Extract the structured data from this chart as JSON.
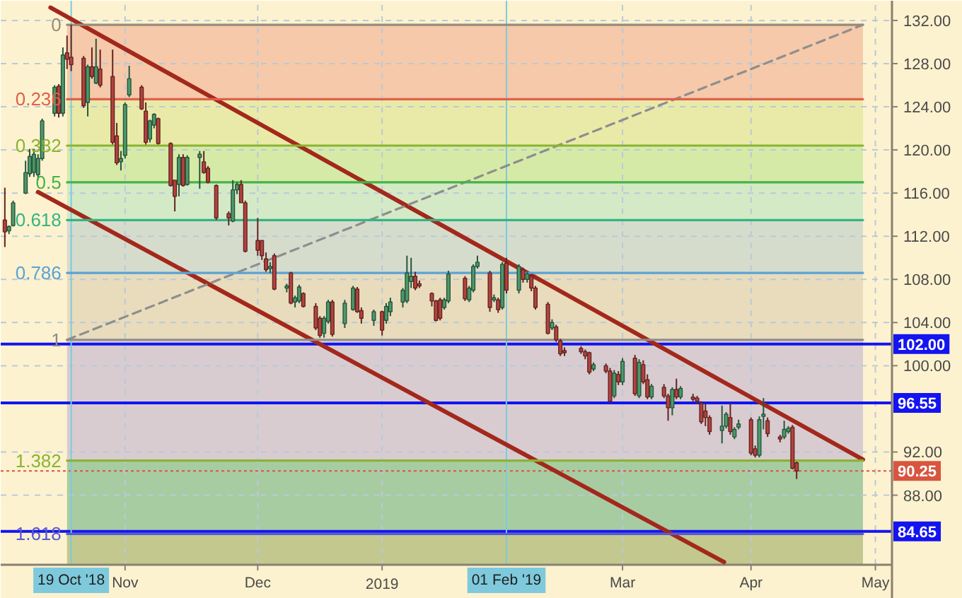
{
  "chart_data": {
    "type": "candlestick",
    "x": [
      "2018-10-03",
      "2018-10-04",
      "2018-10-05",
      "2018-10-08",
      "2018-10-09",
      "2018-10-10",
      "2018-10-11",
      "2018-10-12",
      "2018-10-15",
      "2018-10-16",
      "2018-10-17",
      "2018-10-18",
      "2018-10-19",
      "2018-10-22",
      "2018-10-23",
      "2018-10-24",
      "2018-10-25",
      "2018-10-26",
      "2018-10-29",
      "2018-10-30",
      "2018-10-31",
      "2018-11-01",
      "2018-11-02",
      "2018-11-05",
      "2018-11-06",
      "2018-11-07",
      "2018-11-08",
      "2018-11-09",
      "2018-11-12",
      "2018-11-13",
      "2018-11-14",
      "2018-11-15",
      "2018-11-16",
      "2018-11-19",
      "2018-11-20",
      "2018-11-21",
      "2018-11-23",
      "2018-11-26",
      "2018-11-27",
      "2018-11-28",
      "2018-11-29",
      "2018-11-30",
      "2018-12-03",
      "2018-12-04",
      "2018-12-05",
      "2018-12-06",
      "2018-12-07",
      "2018-12-10",
      "2018-12-11",
      "2018-12-12",
      "2018-12-13",
      "2018-12-14",
      "2018-12-17",
      "2018-12-18",
      "2018-12-19",
      "2018-12-20",
      "2018-12-21",
      "2018-12-24",
      "2018-12-26",
      "2018-12-27",
      "2018-12-28",
      "2018-12-31",
      "2019-01-02",
      "2019-01-03",
      "2019-01-04",
      "2019-01-07",
      "2019-01-08",
      "2019-01-09",
      "2019-01-10",
      "2019-01-11",
      "2019-01-14",
      "2019-01-15",
      "2019-01-16",
      "2019-01-17",
      "2019-01-18",
      "2019-01-22",
      "2019-01-23",
      "2019-01-24",
      "2019-01-25",
      "2019-01-28",
      "2019-01-29",
      "2019-01-30",
      "2019-01-31",
      "2019-02-01",
      "2019-02-04",
      "2019-02-05",
      "2019-02-06",
      "2019-02-07",
      "2019-02-08",
      "2019-02-11",
      "2019-02-12",
      "2019-02-13",
      "2019-02-14",
      "2019-02-15",
      "2019-02-19",
      "2019-02-20",
      "2019-02-21",
      "2019-02-22",
      "2019-02-25",
      "2019-02-26",
      "2019-02-27",
      "2019-02-28",
      "2019-03-01",
      "2019-03-04",
      "2019-03-05",
      "2019-03-06",
      "2019-03-07",
      "2019-03-08",
      "2019-03-11",
      "2019-03-12",
      "2019-03-13",
      "2019-03-14",
      "2019-03-15",
      "2019-03-18",
      "2019-03-19",
      "2019-03-20",
      "2019-03-21",
      "2019-03-22",
      "2019-03-25",
      "2019-03-26",
      "2019-03-27",
      "2019-03-28",
      "2019-03-29",
      "2019-04-01",
      "2019-04-02",
      "2019-04-03",
      "2019-04-04",
      "2019-04-05",
      "2019-04-08",
      "2019-04-09",
      "2019-04-10",
      "2019-04-11",
      "2019-04-12"
    ],
    "ohlc": [
      [
        113.5,
        116.5,
        111.0,
        112.4
      ],
      [
        112.5,
        113.0,
        112.2,
        112.9
      ],
      [
        113.0,
        115.3,
        112.9,
        115.1
      ],
      [
        116.0,
        119.0,
        115.9,
        117.9
      ],
      [
        117.8,
        120.1,
        117.5,
        119.4
      ],
      [
        117.9,
        120.1,
        117.5,
        119.6
      ],
      [
        117.7,
        119.6,
        117.2,
        119.2
      ],
      [
        119.2,
        122.9,
        119.0,
        122.7
      ],
      [
        123.4,
        126.0,
        123.1,
        125.8
      ],
      [
        125.9,
        126.1,
        123.0,
        123.4
      ],
      [
        123.4,
        129.5,
        123.1,
        128.8
      ],
      [
        129.0,
        130.6,
        127.5,
        128.4
      ],
      [
        128.6,
        131.6,
        127.3,
        127.9
      ],
      [
        128.5,
        128.7,
        123.9,
        124.1
      ],
      [
        124.4,
        127.9,
        123.1,
        127.7
      ],
      [
        127.7,
        129.5,
        126.6,
        126.8
      ],
      [
        126.2,
        130.3,
        126.1,
        127.7
      ],
      [
        127.5,
        129.3,
        125.8,
        126.0
      ],
      [
        126.8,
        129.3,
        120.5,
        120.7
      ],
      [
        121.3,
        122.5,
        118.6,
        118.8
      ],
      [
        118.9,
        119.9,
        118.1,
        119.2
      ],
      [
        119.5,
        124.4,
        119.2,
        124.2
      ],
      [
        125.1,
        127.8,
        124.9,
        126.6
      ],
      [
        125.8,
        126.0,
        123.7,
        123.8
      ],
      [
        123.6,
        124.4,
        120.5,
        120.7
      ],
      [
        121.0,
        122.8,
        120.7,
        122.7
      ],
      [
        122.3,
        123.4,
        122.0,
        123.3
      ],
      [
        122.9,
        123.0,
        120.5,
        120.6
      ],
      [
        120.6,
        120.7,
        116.6,
        116.7
      ],
      [
        117.2,
        117.2,
        114.3,
        115.7
      ],
      [
        116.8,
        119.6,
        115.7,
        119.3
      ],
      [
        119.3,
        119.6,
        116.6,
        116.7
      ],
      [
        116.8,
        119.5,
        116.7,
        119.3
      ],
      [
        119.3,
        119.9,
        116.4,
        119.6
      ],
      [
        118.9,
        119.9,
        117.8,
        117.9
      ],
      [
        118.3,
        118.5,
        116.9,
        117.0
      ],
      [
        116.7,
        116.8,
        113.5,
        113.7
      ],
      [
        114.1,
        114.3,
        113.0,
        113.7
      ],
      [
        113.4,
        117.2,
        113.3,
        116.3
      ],
      [
        116.3,
        117.0,
        115.9,
        116.8
      ],
      [
        116.8,
        117.2,
        115.1,
        115.1
      ],
      [
        115.1,
        115.3,
        110.5,
        110.6
      ],
      [
        111.6,
        113.7,
        110.2,
        110.7
      ],
      [
        111.6,
        111.6,
        109.8,
        110.2
      ],
      [
        109.9,
        110.5,
        108.7,
        108.9
      ],
      [
        109.0,
        109.6,
        108.6,
        109.2
      ],
      [
        110.2,
        110.4,
        107.0,
        107.1
      ],
      [
        107.2,
        107.6,
        106.8,
        107.4
      ],
      [
        108.6,
        108.7,
        105.7,
        105.8
      ],
      [
        105.9,
        106.5,
        105.4,
        106.3
      ],
      [
        106.0,
        107.5,
        105.8,
        107.3
      ],
      [
        106.7,
        106.8,
        105.4,
        105.5
      ],
      [
        105.5,
        105.8,
        103.3,
        103.5
      ],
      [
        104.4,
        104.6,
        102.6,
        102.8
      ],
      [
        103.0,
        104.6,
        102.6,
        104.4
      ],
      [
        104.1,
        106.1,
        103.9,
        105.9
      ],
      [
        105.9,
        106.1,
        102.7,
        102.9
      ],
      [
        103.9,
        106.1,
        103.5,
        105.8
      ],
      [
        105.2,
        107.4,
        105.1,
        107.2
      ],
      [
        107.1,
        107.3,
        104.9,
        105.0
      ],
      [
        105.1,
        105.4,
        103.9,
        104.4
      ],
      [
        104.2,
        105.2,
        103.7,
        105.0
      ],
      [
        105.0,
        105.1,
        102.8,
        103.3
      ],
      [
        104.2,
        105.8,
        103.9,
        105.5
      ],
      [
        105.0,
        106.3,
        104.6,
        105.9
      ],
      [
        105.9,
        107.2,
        105.4,
        107.0
      ],
      [
        106.0,
        110.2,
        105.8,
        108.6
      ],
      [
        107.8,
        110.0,
        107.2,
        108.3
      ],
      [
        108.3,
        108.7,
        107.0,
        107.2
      ],
      [
        107.6,
        107.9,
        107.2,
        107.4
      ],
      [
        106.7,
        106.8,
        105.5,
        106.0
      ],
      [
        106.0,
        106.1,
        104.1,
        104.2
      ],
      [
        106.1,
        106.3,
        104.2,
        104.4
      ],
      [
        105.4,
        106.3,
        105.2,
        106.1
      ],
      [
        106.0,
        108.8,
        105.8,
        108.5
      ],
      [
        108.1,
        108.3,
        106.0,
        106.2
      ],
      [
        106.1,
        107.4,
        105.9,
        107.2
      ],
      [
        107.0,
        109.4,
        106.8,
        109.2
      ],
      [
        109.2,
        110.2,
        109.0,
        109.6
      ],
      [
        108.6,
        108.8,
        105.0,
        105.4
      ],
      [
        106.1,
        106.6,
        105.9,
        106.3
      ],
      [
        106.1,
        106.3,
        104.9,
        105.2
      ],
      [
        105.4,
        109.6,
        105.2,
        109.4
      ],
      [
        109.5,
        110.0,
        106.7,
        107.0
      ],
      [
        107.0,
        109.4,
        106.7,
        109.2
      ],
      [
        108.9,
        109.1,
        107.7,
        108.0
      ],
      [
        108.0,
        108.7,
        107.7,
        108.5
      ],
      [
        108.3,
        108.5,
        106.9,
        107.2
      ],
      [
        107.2,
        107.4,
        105.2,
        105.4
      ],
      [
        105.7,
        105.9,
        102.9,
        103.0
      ],
      [
        103.5,
        104.3,
        103.3,
        104.0
      ],
      [
        103.6,
        103.8,
        102.2,
        102.4
      ],
      [
        102.3,
        102.5,
        100.9,
        101.1
      ],
      [
        101.4,
        101.7,
        100.9,
        101.2
      ],
      [
        101.6,
        101.8,
        101.1,
        101.3
      ],
      [
        101.3,
        101.5,
        100.6,
        100.9
      ],
      [
        101.2,
        101.3,
        99.2,
        99.4
      ],
      [
        99.7,
        100.3,
        99.5,
        100.1
      ],
      [
        100.0,
        100.2,
        99.3,
        99.5
      ],
      [
        99.5,
        99.8,
        96.6,
        96.7
      ],
      [
        97.2,
        99.6,
        97.0,
        99.3
      ],
      [
        99.2,
        99.5,
        98.2,
        98.5
      ],
      [
        98.5,
        100.7,
        98.2,
        100.4
      ],
      [
        100.7,
        101.0,
        97.2,
        97.4
      ],
      [
        97.2,
        100.6,
        97.0,
        100.3
      ],
      [
        100.1,
        100.5,
        98.3,
        98.5
      ],
      [
        98.7,
        99.2,
        96.9,
        97.1
      ],
      [
        97.1,
        98.3,
        96.9,
        98.1
      ],
      [
        98.0,
        98.3,
        97.0,
        97.2
      ],
      [
        97.2,
        97.4,
        94.9,
        96.1
      ],
      [
        96.1,
        98.0,
        95.4,
        97.8
      ],
      [
        97.8,
        98.8,
        96.9,
        97.1
      ],
      [
        97.1,
        98.1,
        96.9,
        97.9
      ],
      [
        97.1,
        97.4,
        96.7,
        96.9
      ],
      [
        97.0,
        97.2,
        96.5,
        96.7
      ],
      [
        96.5,
        96.7,
        94.6,
        94.8
      ],
      [
        95.8,
        96.5,
        94.4,
        95.2
      ],
      [
        95.2,
        95.4,
        93.6,
        93.9
      ],
      [
        94.0,
        96.3,
        92.8,
        94.4
      ],
      [
        94.4,
        95.7,
        94.2,
        95.5
      ],
      [
        95.2,
        96.5,
        93.6,
        93.9
      ],
      [
        93.4,
        94.3,
        93.2,
        94.1
      ],
      [
        94.3,
        95.0,
        94.1,
        94.6
      ],
      [
        95.0,
        95.2,
        91.7,
        91.9
      ],
      [
        92.3,
        92.6,
        91.5,
        91.7
      ],
      [
        91.7,
        95.3,
        91.5,
        95.0
      ],
      [
        95.3,
        97.0,
        94.1,
        95.5
      ],
      [
        94.9,
        95.2,
        93.4,
        93.7
      ],
      [
        93.4,
        93.6,
        92.9,
        93.2
      ],
      [
        93.4,
        94.9,
        93.2,
        94.1
      ],
      [
        93.9,
        94.4,
        93.7,
        94.2
      ],
      [
        94.3,
        94.5,
        90.4,
        90.5
      ],
      [
        91.0,
        91.1,
        89.5,
        90.25
      ]
    ],
    "colors": [
      "#b4433e",
      "#4c9a6c",
      "#4c9a6c",
      "#4c9a6c",
      "#4c9a6c",
      "#4c9a6c",
      "#4c9a6c",
      "#4c9a6c",
      "#4c9a6c",
      "#b4433e",
      "#4c9a6c",
      "#b4433e",
      "#b4433e",
      "#b4433e",
      "#4c9a6c",
      "#b4433e",
      "#4c9a6c",
      "#b4433e",
      "#b4433e",
      "#b4433e",
      "#4c9a6c",
      "#4c9a6c",
      "#4c9a6c",
      "#b4433e",
      "#b4433e",
      "#4c9a6c",
      "#4c9a6c",
      "#b4433e",
      "#b4433e",
      "#b4433e",
      "#4c9a6c",
      "#b4433e",
      "#4c9a6c",
      "#4c9a6c",
      "#b4433e",
      "#b4433e",
      "#b4433e",
      "#b4433e",
      "#4c9a6c",
      "#4c9a6c",
      "#b4433e",
      "#b4433e",
      "#b4433e",
      "#b4433e",
      "#b4433e",
      "#4c9a6c",
      "#b4433e",
      "#4c9a6c",
      "#b4433e",
      "#4c9a6c",
      "#4c9a6c",
      "#b4433e",
      "#b4433e",
      "#b4433e",
      "#4c9a6c",
      "#4c9a6c",
      "#b4433e",
      "#4c9a6c",
      "#4c9a6c",
      "#b4433e",
      "#b4433e",
      "#4c9a6c",
      "#b4433e",
      "#4c9a6c",
      "#4c9a6c",
      "#4c9a6c",
      "#4c9a6c",
      "#4c9a6c",
      "#b4433e",
      "#b4433e",
      "#b4433e",
      "#b4433e",
      "#b4433e",
      "#4c9a6c",
      "#4c9a6c",
      "#b4433e",
      "#4c9a6c",
      "#4c9a6c",
      "#4c9a6c",
      "#b4433e",
      "#4c9a6c",
      "#b4433e",
      "#4c9a6c",
      "#b4433e",
      "#4c9a6c",
      "#b4433e",
      "#4c9a6c",
      "#b4433e",
      "#b4433e",
      "#b4433e",
      "#4c9a6c",
      "#b4433e",
      "#b4433e",
      "#b4433e",
      "#b4433e",
      "#b4433e",
      "#b4433e",
      "#4c9a6c",
      "#b4433e",
      "#b4433e",
      "#4c9a6c",
      "#b4433e",
      "#4c9a6c",
      "#b4433e",
      "#4c9a6c",
      "#b4433e",
      "#b4433e",
      "#4c9a6c",
      "#b4433e",
      "#b4433e",
      "#4c9a6c",
      "#b4433e",
      "#4c9a6c",
      "#b4433e",
      "#b4433e",
      "#b4433e",
      "#b4433e",
      "#b4433e",
      "#4c9a6c",
      "#4c9a6c",
      "#b4433e",
      "#4c9a6c",
      "#4c9a6c",
      "#b4433e",
      "#b4433e",
      "#4c9a6c",
      "#4c9a6c",
      "#b4433e",
      "#b4433e",
      "#4c9a6c",
      "#4c9a6c",
      "#b4433e",
      "#b4433e"
    ],
    "series": [
      {
        "type": "line",
        "x": [
          "2018-10-14",
          "2019-04-28"
        ],
        "values": [
          133.2,
          91.3
        ],
        "color": "#a3281c"
      },
      {
        "type": "line",
        "x": [
          "2018-10-11",
          "2019-03-25T12:00"
        ],
        "values": [
          116.1,
          81.8
        ],
        "color": "#a3281c"
      },
      {
        "type": "line",
        "x": [
          "2018-10-18",
          "2019-04-28"
        ],
        "values": [
          102.4,
          131.6
        ],
        "color": "#8e8e8e",
        "line_style": "dashed"
      },
      {
        "type": "line",
        "name": "0",
        "x": [
          "2018-10-18",
          "2019-04-28"
        ],
        "values": [
          131.6,
          131.6
        ],
        "color": "#978c7c"
      },
      {
        "type": "line",
        "name": "0.236",
        "x": [
          "2018-10-18",
          "2019-04-28"
        ],
        "values": [
          124.7,
          124.7
        ],
        "color": "#e0604c"
      },
      {
        "type": "line",
        "name": "0.382",
        "x": [
          "2018-10-18",
          "2019-04-28"
        ],
        "values": [
          120.4,
          120.4
        ],
        "color": "#8ab430"
      },
      {
        "type": "line",
        "name": "0.5",
        "x": [
          "2018-10-18",
          "2019-04-28"
        ],
        "values": [
          117.0,
          117.0
        ],
        "color": "#44b444"
      },
      {
        "type": "line",
        "name": "0.618",
        "x": [
          "2018-10-18",
          "2019-04-28"
        ],
        "values": [
          113.5,
          113.5
        ],
        "color": "#34b484"
      },
      {
        "type": "line",
        "name": "0.786",
        "x": [
          "2018-10-18",
          "2019-04-28"
        ],
        "values": [
          108.6,
          108.6
        ],
        "color": "#5aa2d6"
      },
      {
        "type": "line",
        "name": "1",
        "x": [
          "2018-10-18",
          "2019-04-28"
        ],
        "values": [
          102.4,
          102.4
        ],
        "color": "#8c8c8c"
      },
      {
        "type": "line",
        "name": "1.382",
        "x": [
          "2018-10-18",
          "2019-04-28"
        ],
        "values": [
          91.2,
          91.2
        ],
        "color": "#8ab430"
      },
      {
        "type": "line",
        "name": "1.618",
        "x": [
          "2018-10-18",
          "2019-04-28"
        ],
        "values": [
          84.4,
          84.4
        ],
        "color": "#5a5ad0"
      }
    ],
    "bands": [
      {
        "axis": "y",
        "from": 131.6,
        "to": 124.7,
        "color": "#f5c9a9"
      },
      {
        "axis": "y",
        "from": 124.7,
        "to": 120.4,
        "color": "#eaeaa8"
      },
      {
        "axis": "y",
        "from": 120.4,
        "to": 117.0,
        "color": "#d6eaa8"
      },
      {
        "axis": "y",
        "from": 117.0,
        "to": 113.5,
        "color": "#d4eac6"
      },
      {
        "axis": "y",
        "from": 113.5,
        "to": 108.6,
        "color": "#d6dccc"
      },
      {
        "axis": "y",
        "from": 108.6,
        "to": 102.4,
        "color": "#e8dcbc"
      },
      {
        "axis": "y",
        "from": 102.4,
        "to": 91.2,
        "color": "#d8ccd0"
      },
      {
        "axis": "y",
        "from": 91.2,
        "to": 84.4,
        "color": "#a8cca2"
      },
      {
        "axis": "y",
        "from": 84.4,
        "to": 81.55,
        "color": "#c2c88e"
      }
    ],
    "ref_lines": [
      {
        "axis": "y",
        "value": 102.0,
        "label": "102.00",
        "color": "#1414f0"
      },
      {
        "axis": "y",
        "value": 96.55,
        "label": "96.55",
        "color": "#1414f0"
      },
      {
        "axis": "y",
        "value": 84.65,
        "label": "84.65",
        "color": "#1414f0"
      },
      {
        "axis": "y",
        "value": 90.25,
        "label": "90.25",
        "color": "#d8553f",
        "line_style": "dotted"
      },
      {
        "axis": "x",
        "value": "2018-10-19",
        "label": "19 Oct '18",
        "color": "#7ecadc"
      },
      {
        "axis": "x",
        "value": "2019-02-01",
        "label": "01 Feb '19",
        "color": "#7ecadc"
      }
    ],
    "xlim": [
      "2018-10-02",
      "2019-05-05"
    ],
    "ylim": [
      81.55,
      133.83
    ],
    "xticks": [
      {
        "value": "2018-11-01",
        "label": "Nov"
      },
      {
        "value": "2018-12-03",
        "label": "Dec"
      },
      {
        "value": "2019-01-02",
        "label": "2019"
      },
      {
        "value": "2019-03-01",
        "label": "Mar"
      },
      {
        "value": "2019-04-01",
        "label": "Apr"
      },
      {
        "value": "2019-05-01",
        "label": "May"
      }
    ],
    "yticks": [
      {
        "value": 132,
        "label": "132.00"
      },
      {
        "value": 128,
        "label": "128.00"
      },
      {
        "value": 124,
        "label": "124.00"
      },
      {
        "value": 120,
        "label": "120.00"
      },
      {
        "value": 116,
        "label": "116.00"
      },
      {
        "value": 112,
        "label": "112.00"
      },
      {
        "value": 108,
        "label": "108.00"
      },
      {
        "value": 104,
        "label": "104.00"
      },
      {
        "value": 100,
        "label": "100.00"
      },
      {
        "value": 92,
        "label": "92.00"
      },
      {
        "value": 88,
        "label": "88.00"
      }
    ],
    "grid": true
  }
}
